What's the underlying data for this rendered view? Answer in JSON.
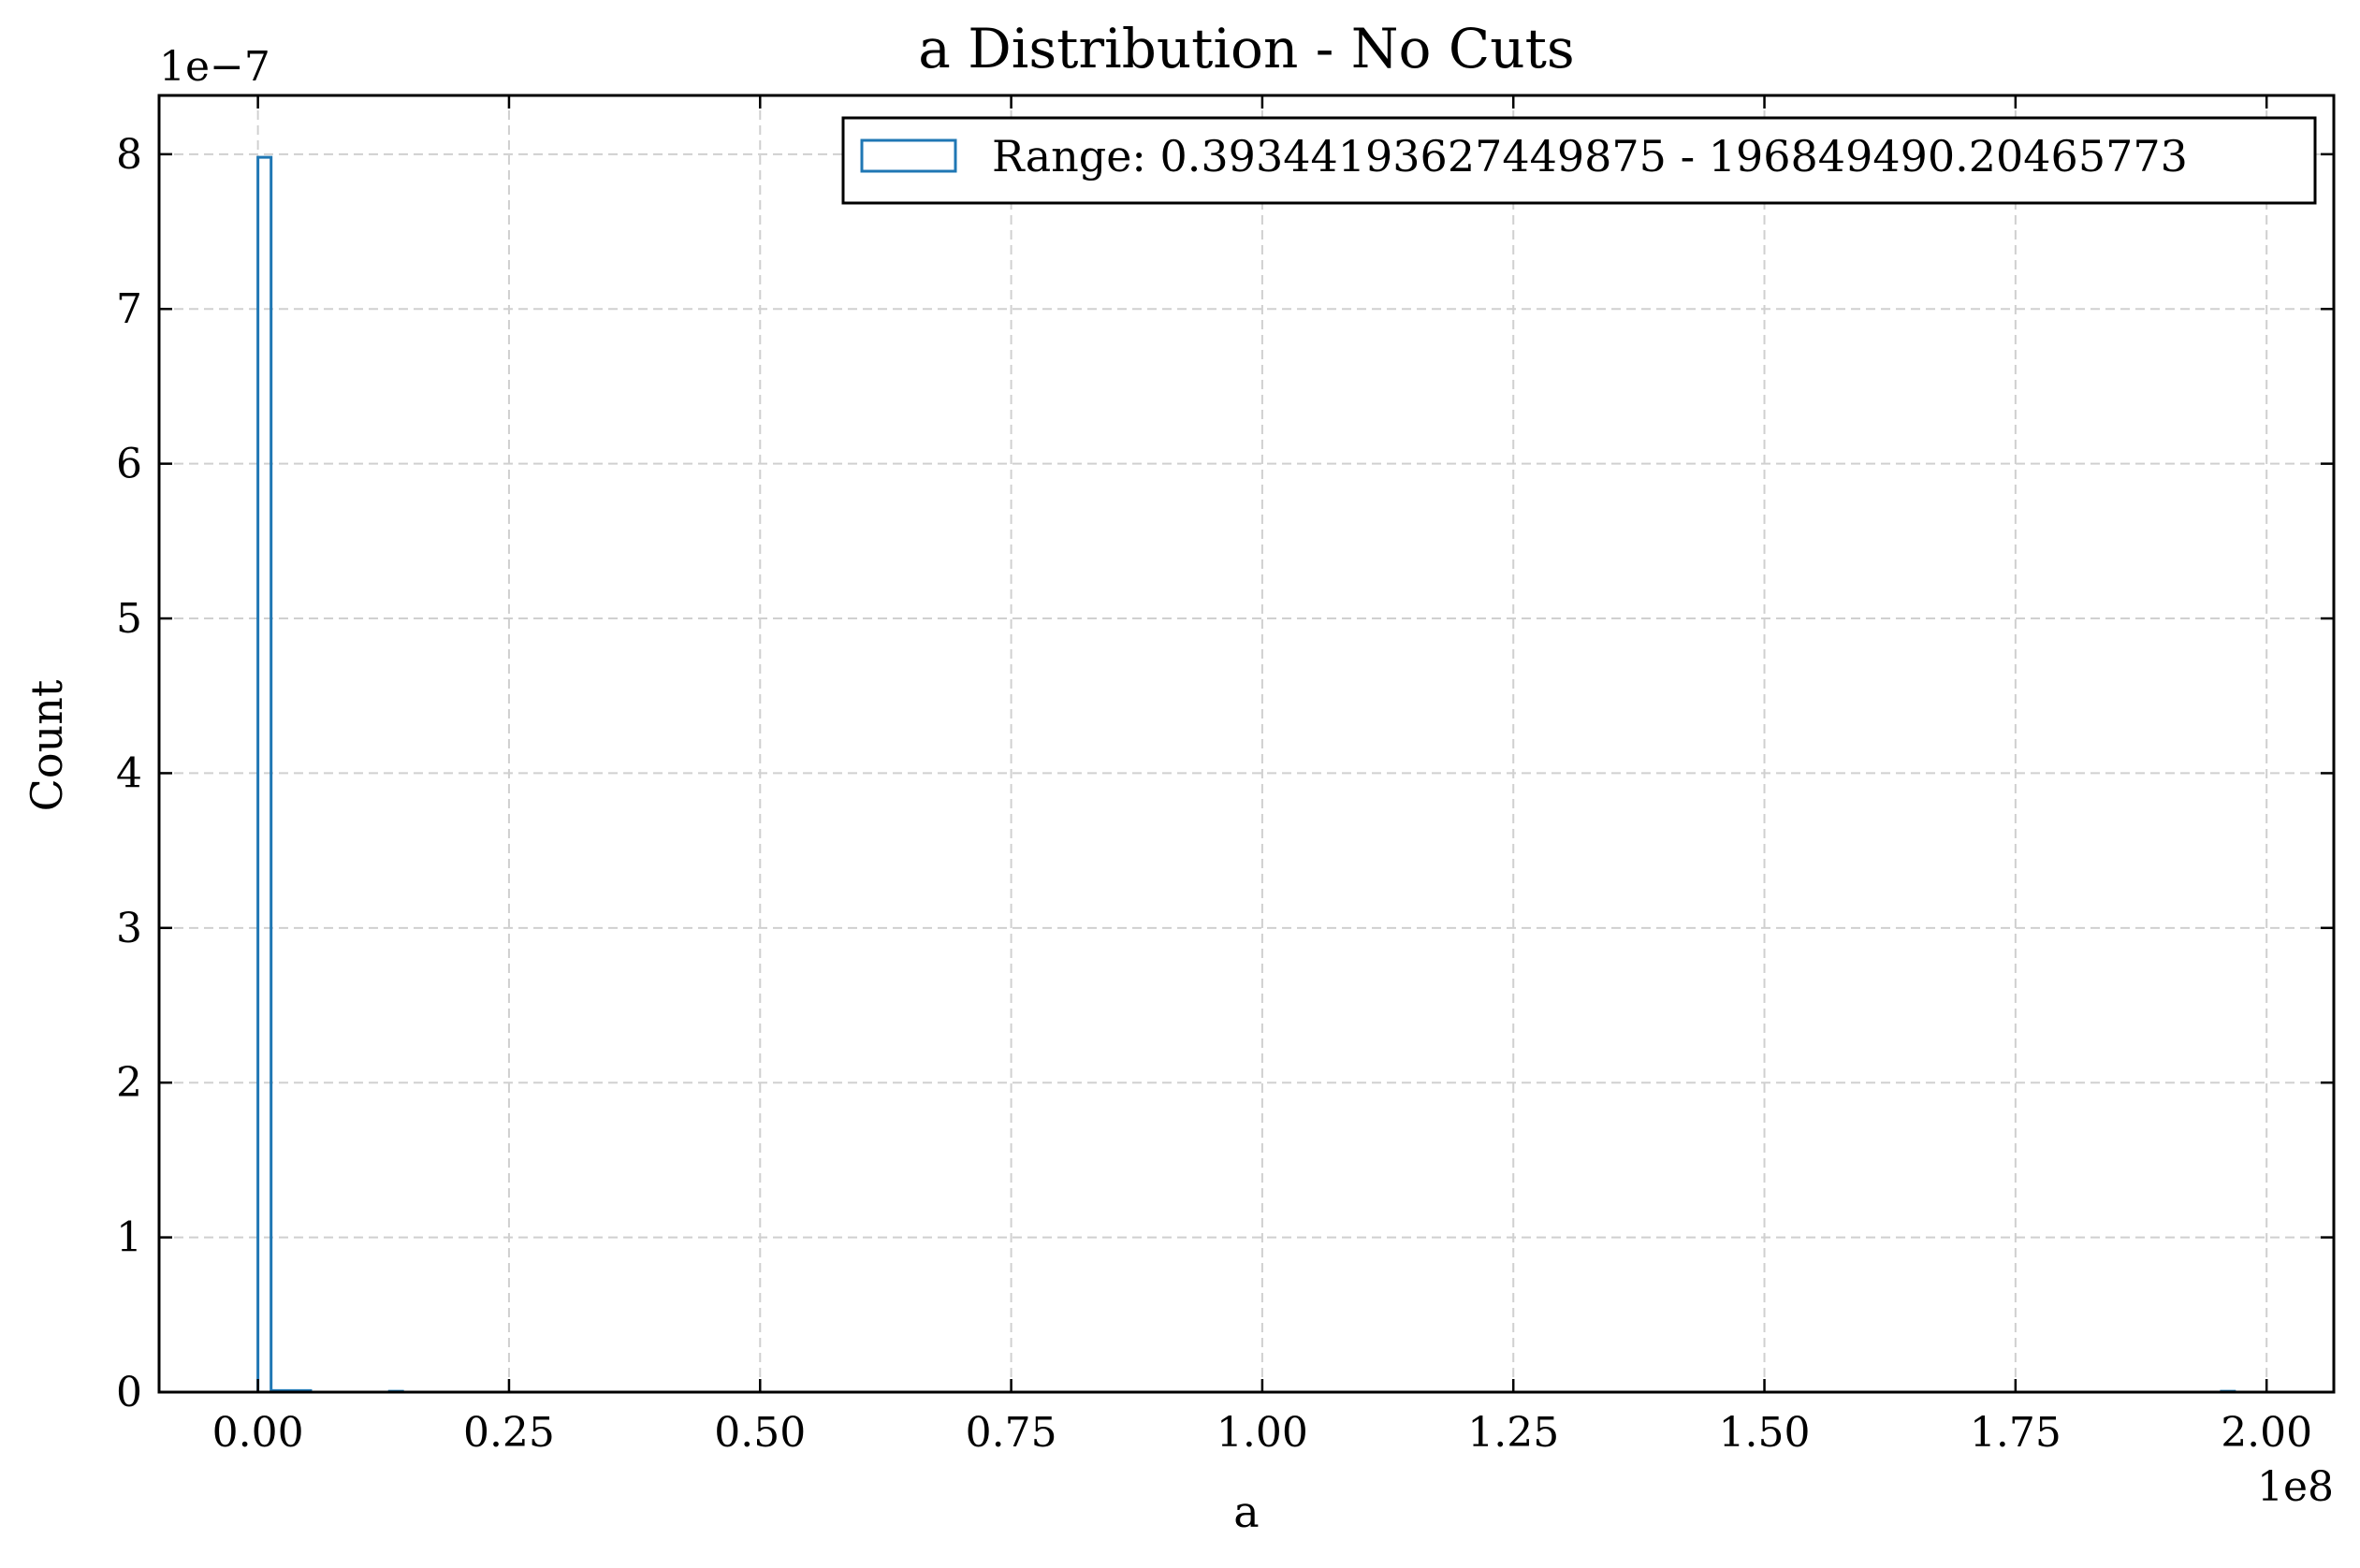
{
  "chart_data": {
    "type": "histogram",
    "title": "a Distribution - No Cuts",
    "xlabel": "a",
    "ylabel": "Count",
    "x_offset_label": "1e8",
    "y_offset_label": "1e−7",
    "xlim": [
      -0.09842,
      2.06692
    ],
    "ylim": [
      0,
      8.38
    ],
    "x_ticks": [
      0,
      0.25,
      0.5,
      0.75,
      1.0,
      1.25,
      1.5,
      1.75,
      2.0
    ],
    "x_tick_labels": [
      "0.00",
      "0.25",
      "0.50",
      "0.75",
      "1.00",
      "1.25",
      "1.50",
      "1.75",
      "2.00"
    ],
    "y_ticks": [
      0,
      1,
      2,
      3,
      4,
      5,
      6,
      7,
      8
    ],
    "y_tick_labels": [
      "0",
      "1",
      "2",
      "3",
      "4",
      "5",
      "6",
      "7",
      "8"
    ],
    "grid": true,
    "legend_position": "top-right",
    "series": [
      {
        "name": "Range: 0.39344193627449875 - 196849490.20465773",
        "color": "#1f77b4",
        "histtype": "step",
        "bin_edges": [
          0.0,
          0.0131,
          0.0262,
          0.0394,
          0.0525,
          0.0656,
          0.0787,
          0.0918,
          0.105,
          0.118,
          0.131,
          0.144,
          0.157,
          1.955,
          1.968
        ],
        "values": [
          7.98,
          0.01,
          0.01,
          0.01,
          0,
          0,
          0,
          0,
          0,
          0,
          0.005,
          0,
          0,
          0.005
        ]
      }
    ]
  }
}
